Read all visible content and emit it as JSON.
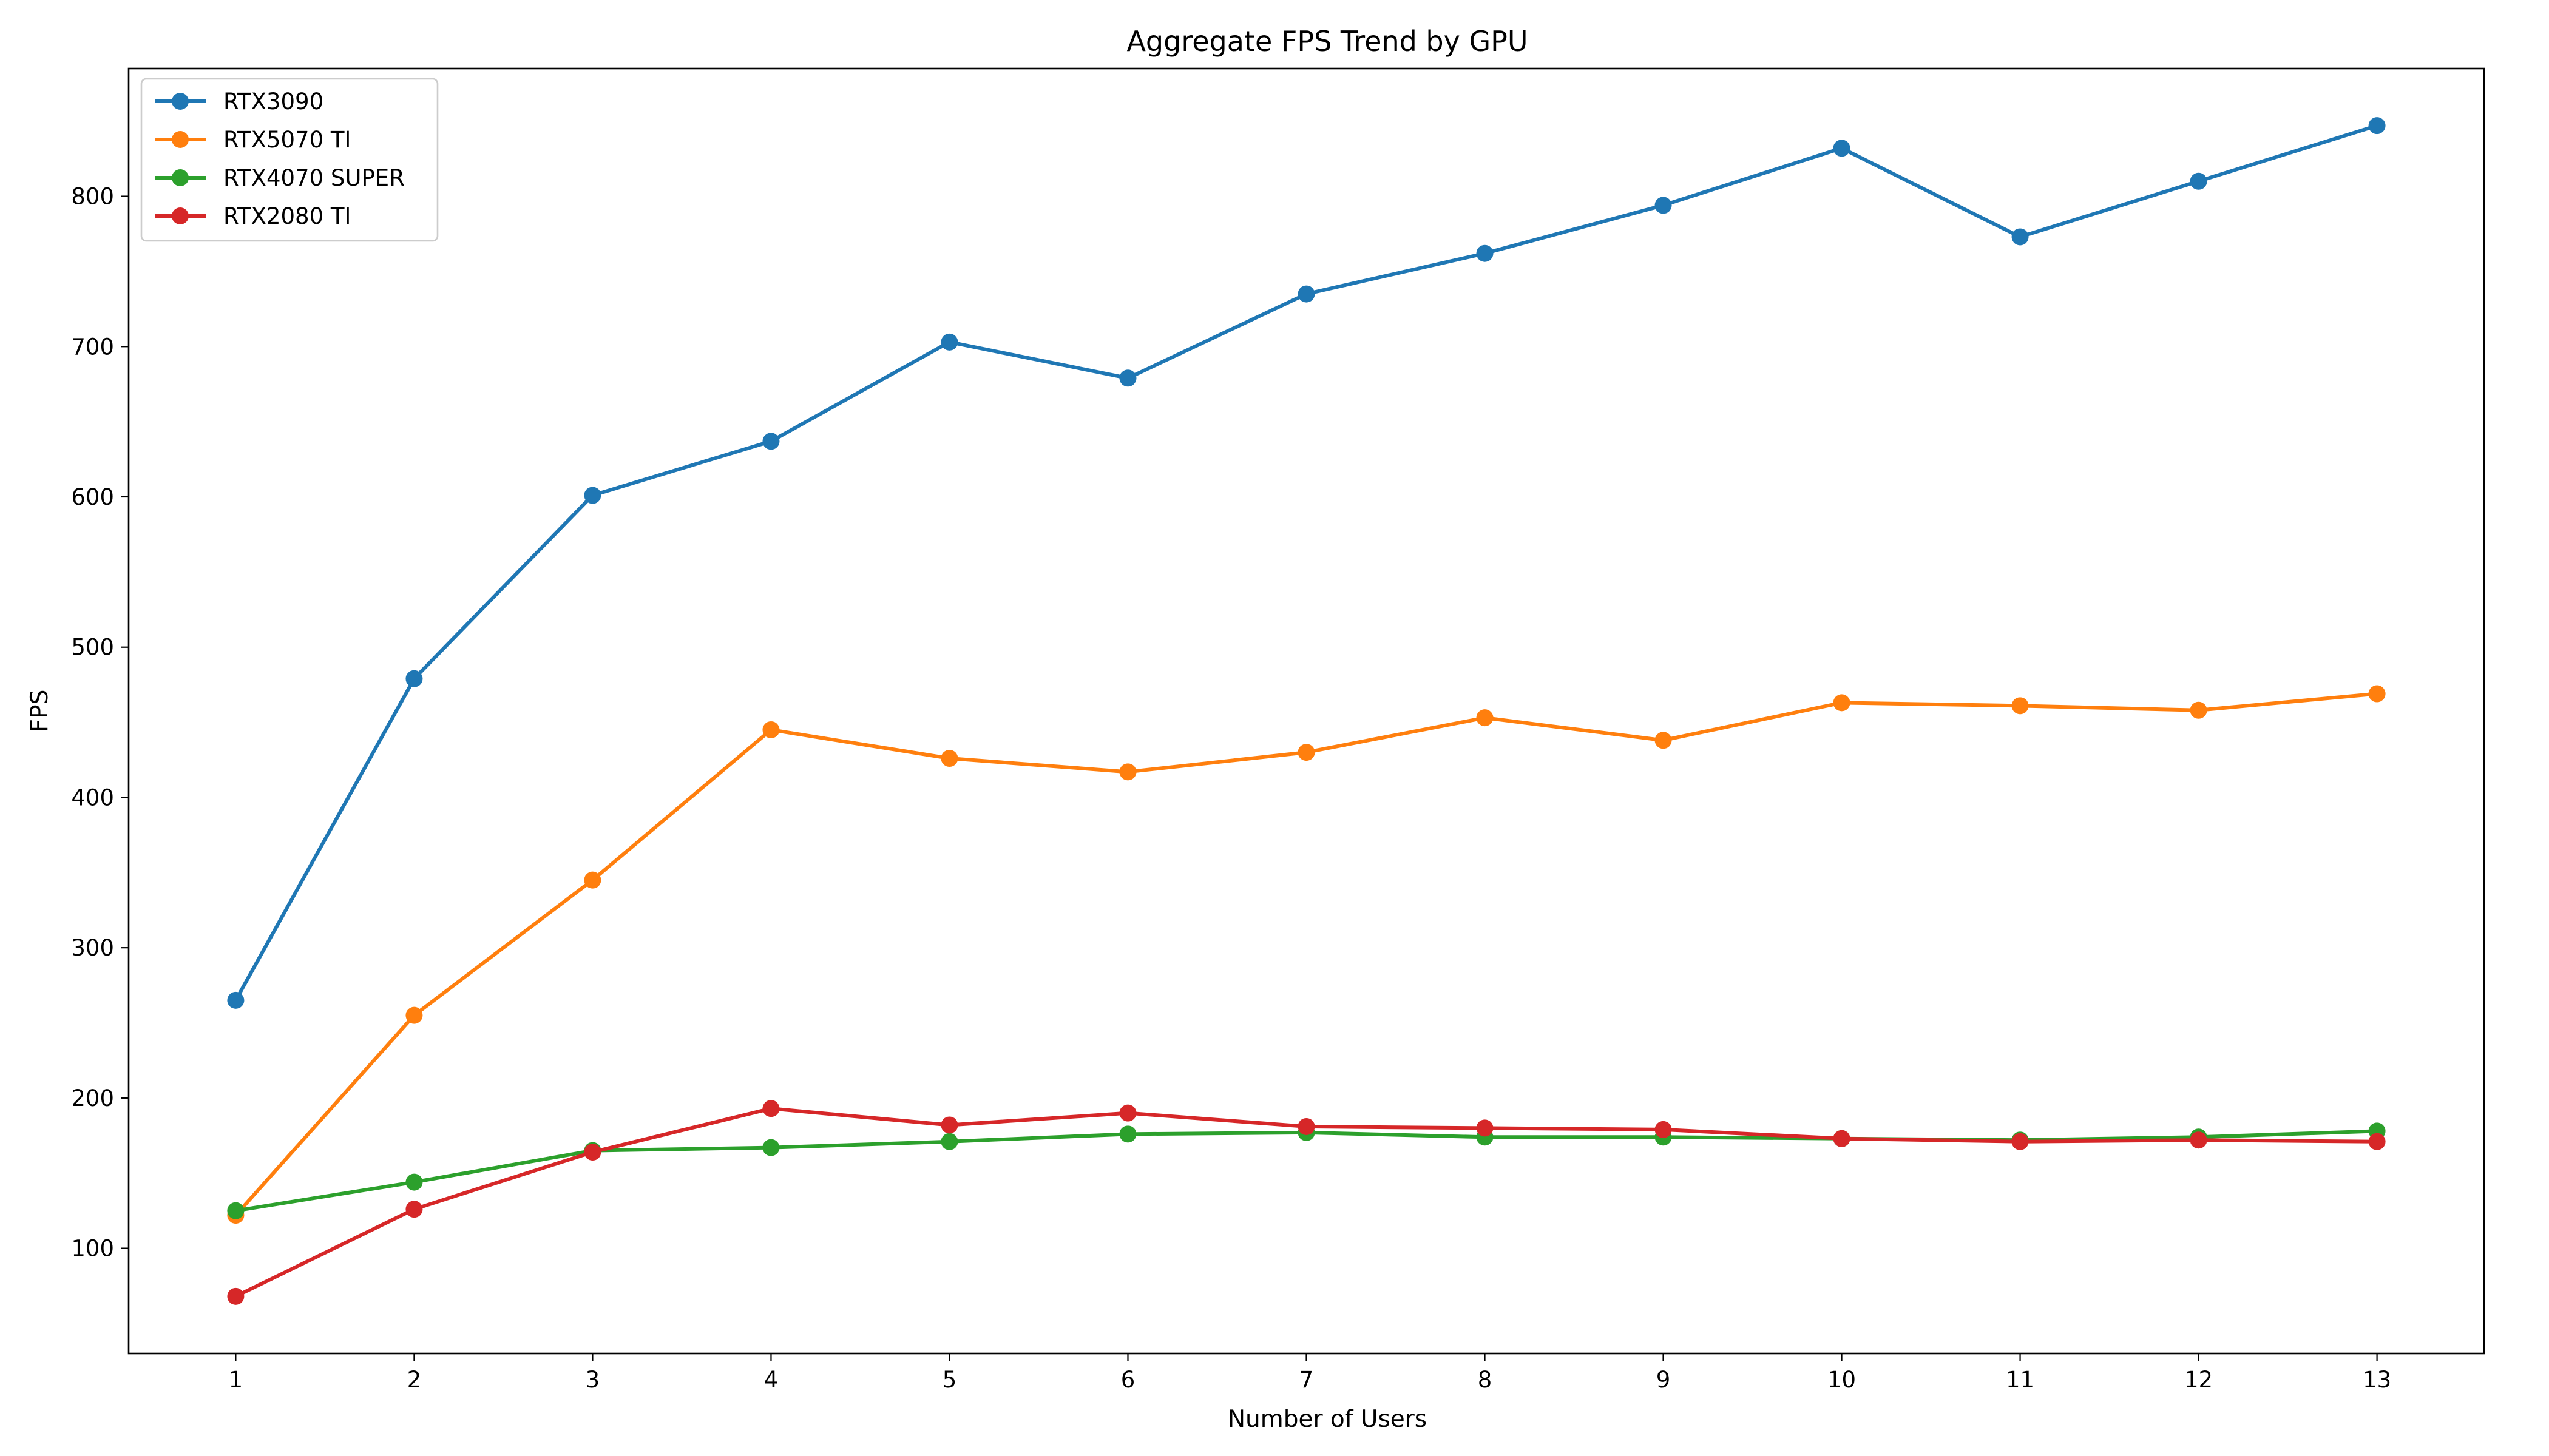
{
  "chart_data": {
    "type": "line",
    "title": "Aggregate FPS Trend by GPU",
    "xlabel": "Number of Users",
    "ylabel": "FPS",
    "x": [
      1,
      2,
      3,
      4,
      5,
      6,
      7,
      8,
      9,
      10,
      11,
      12,
      13
    ],
    "xlim": [
      0.4,
      13.6
    ],
    "ylim": [
      30,
      885
    ],
    "yticks": [
      100,
      200,
      300,
      400,
      500,
      600,
      700,
      800
    ],
    "grid": false,
    "legend_position": "top-left",
    "series": [
      {
        "name": "RTX3090",
        "color": "#1f77b4",
        "values": [
          265,
          479,
          601,
          637,
          703,
          679,
          735,
          762,
          794,
          832,
          773,
          810,
          847
        ]
      },
      {
        "name": "RTX5070 TI",
        "color": "#ff7f0e",
        "values": [
          122,
          255,
          345,
          445,
          426,
          417,
          430,
          453,
          438,
          463,
          461,
          458,
          469
        ]
      },
      {
        "name": "RTX4070 SUPER",
        "color": "#2ca02c",
        "values": [
          125,
          144,
          165,
          167,
          171,
          176,
          177,
          174,
          174,
          173,
          172,
          174,
          178
        ]
      },
      {
        "name": "RTX2080 TI",
        "color": "#d62728",
        "values": [
          68,
          126,
          164,
          193,
          182,
          190,
          181,
          180,
          179,
          173,
          171,
          172,
          171
        ]
      }
    ]
  }
}
